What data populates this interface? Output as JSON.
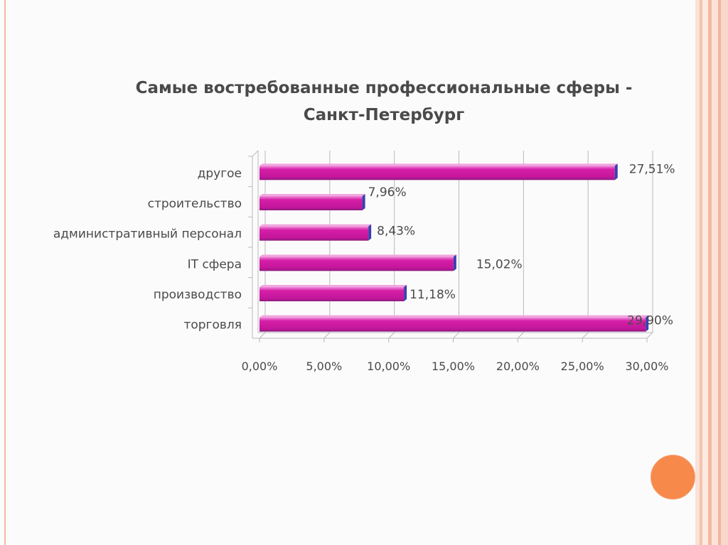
{
  "colors": {
    "bar": "#d21ea3",
    "bar_light": "#e86ccb",
    "bar_dark": "#8b1a7e",
    "bar_side": "#3a3fb0",
    "axis": "#b9b9b9",
    "text": "#4a4a4a",
    "accent_circle": "#f7894b",
    "stripe": "#f2b8a2"
  },
  "chart_data": {
    "type": "bar",
    "orientation": "horizontal",
    "title": "Самые востребованные профессиональные сферы - Санкт-Петербург",
    "title_lines": [
      "Самые востребованные профессиональные сферы -",
      "Санкт-Петербург"
    ],
    "categories": [
      "другое",
      "строительство",
      "административный персонал",
      "IT сфера",
      "производство",
      "торговля"
    ],
    "values": [
      27.51,
      7.96,
      8.43,
      15.02,
      11.18,
      29.9
    ],
    "data_labels": [
      "27,51%",
      "7,96%",
      "8,43%",
      "15,02%",
      "11,18%",
      "29,90%"
    ],
    "x_ticks": [
      "0,00%",
      "5,00%",
      "10,00%",
      "15,00%",
      "20,00%",
      "25,00%",
      "30,00%"
    ],
    "xlim": [
      0,
      30
    ],
    "xlabel": "",
    "ylabel": "",
    "grid": true,
    "legend": false
  }
}
